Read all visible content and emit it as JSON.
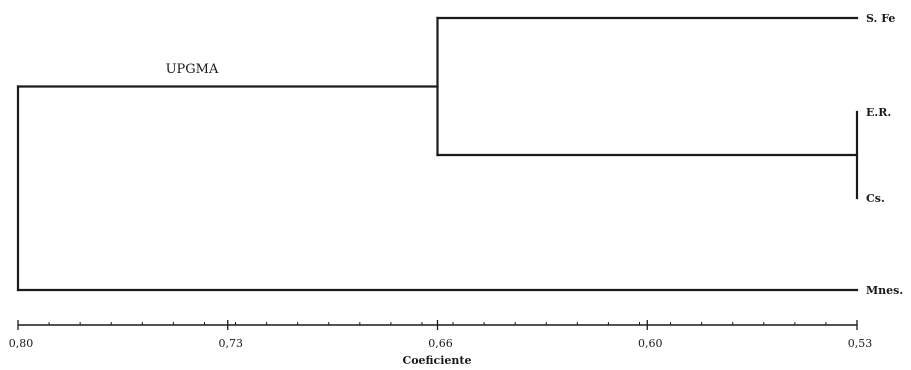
{
  "chart_data": {
    "type": "dendrogram",
    "method_label": "UPGMA",
    "xlabel": "Coeficiente",
    "x_tick_labels": [
      "0,80",
      "0,73",
      "0,66",
      "0,60",
      "0,53"
    ],
    "x_ticks": [
      0.8,
      0.73,
      0.66,
      0.6,
      0.53
    ],
    "xlim": [
      0.8,
      0.53
    ],
    "leaves": [
      {
        "id": "spe",
        "label": "S. Fe"
      },
      {
        "id": "er",
        "label": "E.R."
      },
      {
        "id": "cs",
        "label": "Cs."
      },
      {
        "id": "mnes",
        "label": "Mnes."
      }
    ],
    "merges": [
      {
        "id": "m1",
        "children": [
          "er",
          "cs"
        ],
        "height": 0.53
      },
      {
        "id": "m2",
        "children": [
          "spe",
          "m1"
        ],
        "height": 0.665
      },
      {
        "id": "m3",
        "children": [
          "m2",
          "mnes"
        ],
        "height": 0.8
      }
    ]
  },
  "colors": {
    "line": "#1a1a1a",
    "background": "#ffffff"
  }
}
